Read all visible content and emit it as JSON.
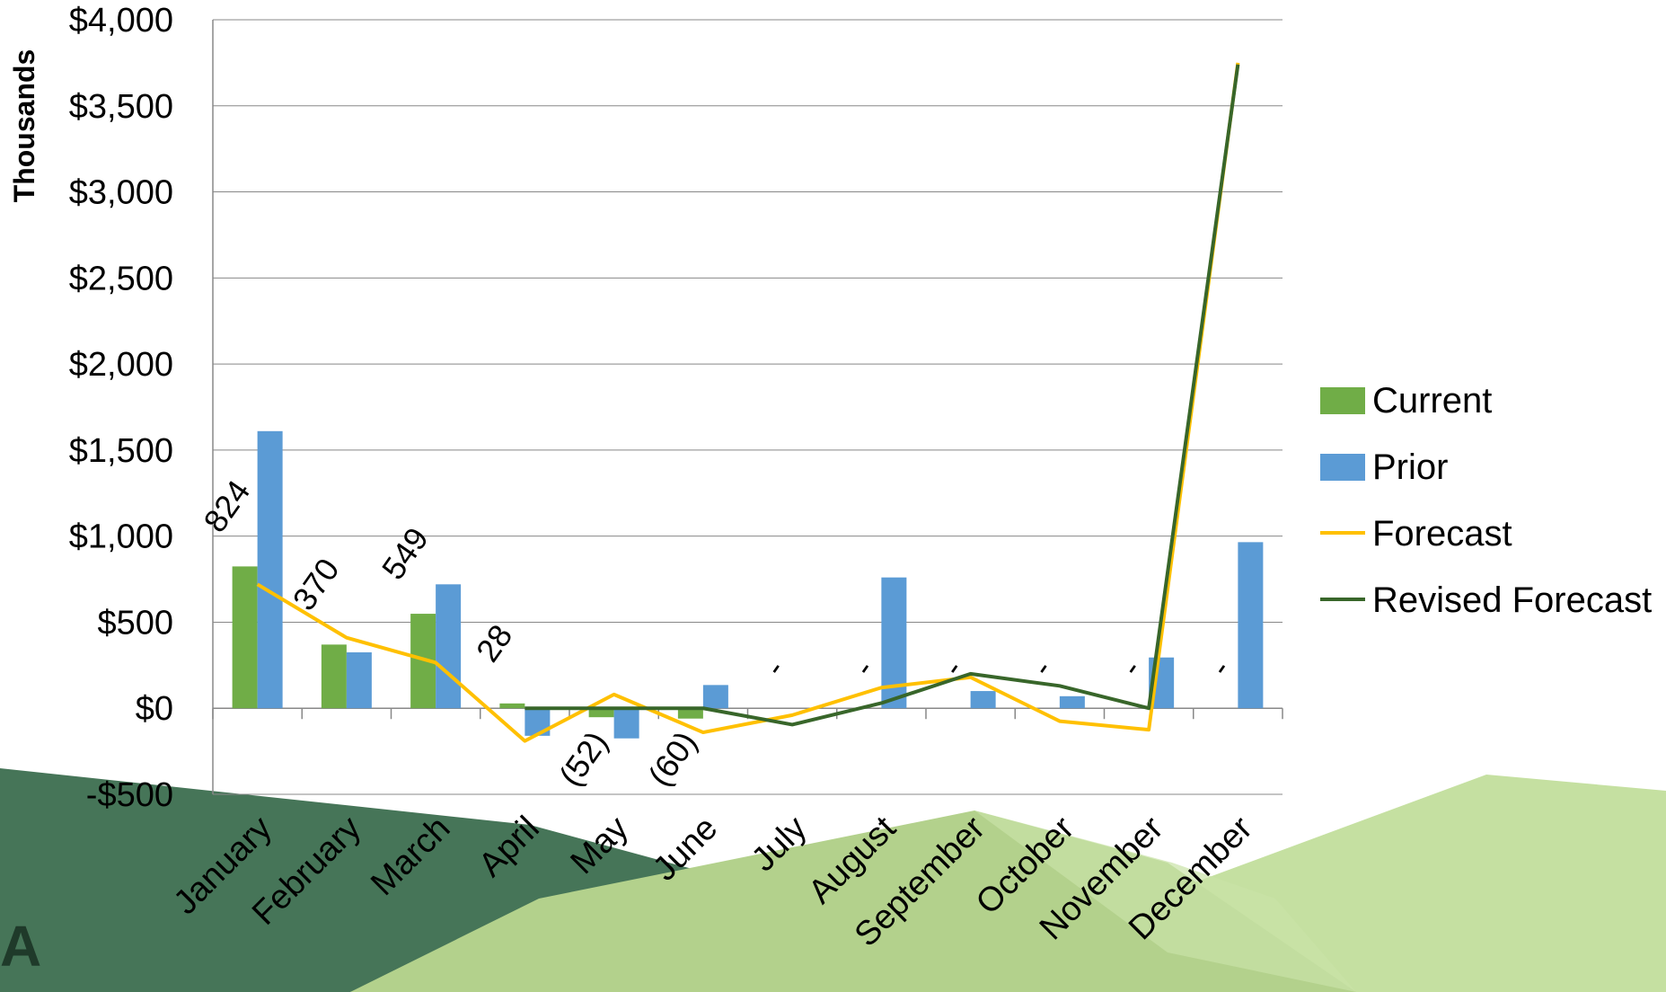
{
  "chart_data": {
    "type": "bar",
    "ylabel": "Thousands",
    "ylim": [
      -500,
      4000
    ],
    "ytick_step": 500,
    "grid": true,
    "legend_position": "right",
    "categories": [
      "January",
      "February",
      "March",
      "April",
      "May",
      "June",
      "July",
      "August",
      "September",
      "October",
      "November",
      "December"
    ],
    "yticks": [
      {
        "value": 4000,
        "label": "$4,000"
      },
      {
        "value": 3500,
        "label": "$3,500"
      },
      {
        "value": 3000,
        "label": "$3,000"
      },
      {
        "value": 2500,
        "label": "$2,500"
      },
      {
        "value": 2000,
        "label": "$2,000"
      },
      {
        "value": 1500,
        "label": "$1,500"
      },
      {
        "value": 1000,
        "label": "$1,000"
      },
      {
        "value": 500,
        "label": "$500"
      },
      {
        "value": 0,
        "label": "$0"
      },
      {
        "value": -500,
        "label": "-$500"
      }
    ],
    "bar_series": [
      {
        "name": "Current",
        "color": "#70ad47",
        "values": [
          824,
          370,
          549,
          28,
          -52,
          -60,
          0,
          0,
          0,
          0,
          0,
          0
        ]
      },
      {
        "name": "Prior",
        "color": "#5b9bd5",
        "values": [
          1610,
          325,
          720,
          -160,
          -175,
          135,
          0,
          760,
          100,
          70,
          295,
          965
        ]
      }
    ],
    "line_series": [
      {
        "name": "Forecast",
        "color": "#ffc000",
        "values": [
          720,
          410,
          265,
          -190,
          80,
          -140,
          -40,
          120,
          180,
          -75,
          -125,
          3750
        ]
      },
      {
        "name": "Revised Forecast",
        "color": "#38662a",
        "values": [
          null,
          null,
          null,
          0,
          0,
          0,
          -95,
          30,
          200,
          130,
          0,
          3740
        ]
      }
    ],
    "data_labels": [
      "824",
      "370",
      "549",
      "28",
      "(52)",
      "(60)",
      "-",
      "-",
      "-",
      "-",
      "-",
      "-"
    ]
  }
}
